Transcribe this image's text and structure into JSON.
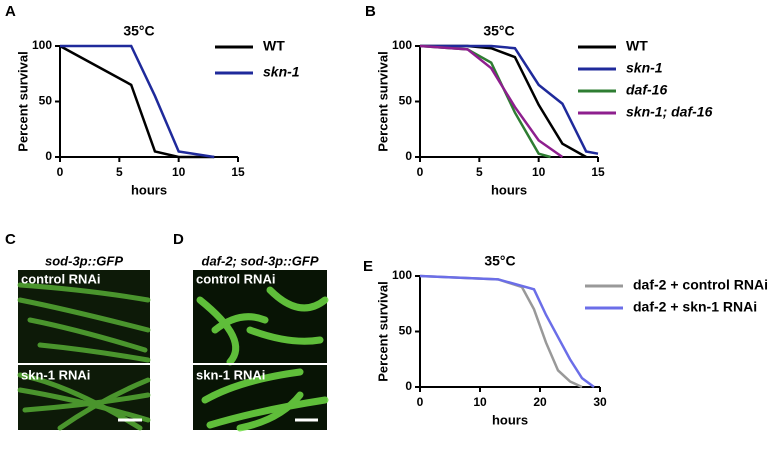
{
  "chart_data": [
    {
      "type": "line",
      "panel_label": "A",
      "title": "35°C",
      "ylabel": "Percent survival",
      "xlabel": "hours",
      "xlim": [
        0,
        15
      ],
      "xticks": [
        0,
        5,
        10,
        15
      ],
      "ylim": [
        0,
        100
      ],
      "yticks": [
        0,
        50,
        100
      ],
      "series": [
        {
          "name": "WT",
          "color": "#000000",
          "x": [
            0,
            6,
            8,
            10,
            13
          ],
          "values": [
            100,
            65,
            5,
            0,
            0
          ]
        },
        {
          "name": "skn-1",
          "color": "#1f2a9b",
          "x": [
            0,
            6,
            8,
            10,
            13
          ],
          "values": [
            100,
            100,
            55,
            5,
            0
          ]
        }
      ]
    },
    {
      "type": "line",
      "panel_label": "B",
      "title": "35°C",
      "ylabel": "Percent survival",
      "xlabel": "hours",
      "xlim": [
        0,
        15
      ],
      "xticks": [
        0,
        5,
        10,
        15
      ],
      "ylim": [
        0,
        100
      ],
      "yticks": [
        0,
        50,
        100
      ],
      "series": [
        {
          "name": "WT",
          "color": "#000000",
          "x": [
            0,
            4,
            6,
            8,
            10,
            12,
            14
          ],
          "values": [
            100,
            100,
            98,
            90,
            47,
            12,
            0
          ]
        },
        {
          "name": "skn-1",
          "color": "#1f2a9b",
          "x": [
            0,
            4,
            6,
            8,
            10,
            12,
            14,
            15
          ],
          "values": [
            100,
            100,
            100,
            98,
            65,
            48,
            5,
            3
          ]
        },
        {
          "name": "daf-16",
          "color": "#2e7d32",
          "x": [
            0,
            4,
            6,
            8,
            10,
            11
          ],
          "values": [
            100,
            97,
            85,
            40,
            3,
            0
          ]
        },
        {
          "name": "skn-1; daf-16",
          "color": "#8e1f8e",
          "x": [
            0,
            4,
            6,
            8,
            10,
            12
          ],
          "values": [
            100,
            97,
            80,
            45,
            15,
            0
          ]
        }
      ]
    },
    {
      "type": "line",
      "panel_label": "E",
      "title": "35°C",
      "ylabel": "Percent survival",
      "xlabel": "hours",
      "xlim": [
        0,
        30
      ],
      "xticks": [
        0,
        10,
        20,
        30
      ],
      "ylim": [
        0,
        100
      ],
      "yticks": [
        0,
        50,
        100
      ],
      "series": [
        {
          "name": "daf-2 + control RNAi",
          "color": "#999999",
          "x": [
            0,
            13,
            17,
            19,
            21,
            23,
            25,
            27
          ],
          "values": [
            100,
            97,
            90,
            70,
            40,
            15,
            5,
            0
          ]
        },
        {
          "name": "daf-2 + skn-1 RNAi",
          "color": "#6b6ee8",
          "x": [
            0,
            13,
            19,
            21,
            23,
            25,
            27,
            29
          ],
          "values": [
            100,
            97,
            88,
            65,
            45,
            25,
            8,
            0
          ]
        }
      ]
    }
  ],
  "image_panels": [
    {
      "panel_label": "C",
      "title": "sod-3p::GFP",
      "top_label": "control RNAi",
      "bottom_label": "skn-1 RNAi"
    },
    {
      "panel_label": "D",
      "title": "daf-2; sod-3p::GFP",
      "top_label": "control RNAi",
      "bottom_label": "skn-1 RNAi"
    }
  ]
}
